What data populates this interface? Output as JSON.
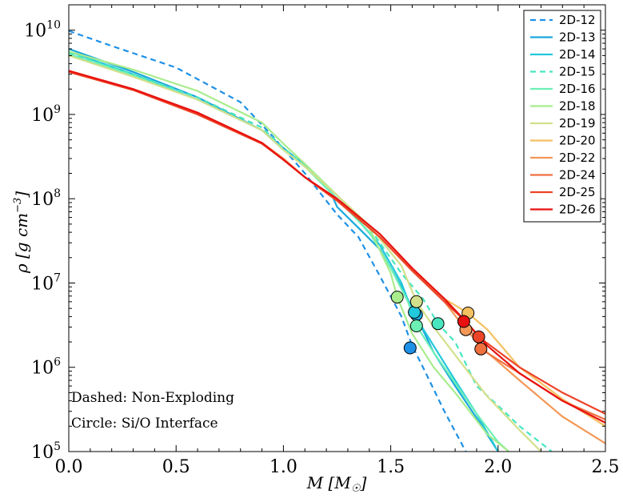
{
  "chart_data": {
    "type": "line",
    "xlabel": "M [M_sun]",
    "ylabel": "ρ [g cm⁻³]",
    "xlim": [
      0.0,
      2.5
    ],
    "ylim": [
      100000,
      20000000000
    ],
    "yscale": "log",
    "x_ticks": [
      0.0,
      0.5,
      1.0,
      1.5,
      2.0,
      2.5
    ],
    "x_tick_labels": [
      "0.0",
      "0.5",
      "1.0",
      "1.5",
      "2.0",
      "2.5"
    ],
    "y_ticks": [
      {
        "value": 100000,
        "base": "10",
        "exp": "5"
      },
      {
        "value": 1000000,
        "base": "10",
        "exp": "6"
      },
      {
        "value": 10000000,
        "base": "10",
        "exp": "7"
      },
      {
        "value": 100000000,
        "base": "10",
        "exp": "8"
      },
      {
        "value": 1000000000,
        "base": "10",
        "exp": "9"
      },
      {
        "value": 10000000000,
        "base": "10",
        "exp": "10"
      }
    ],
    "legend_position": "top-right",
    "annotations": [
      "Dashed: Non-Exploding",
      "Circle: Si/O Interface"
    ],
    "series": [
      {
        "name": "2D-12",
        "color": "#1e90e6",
        "dashed": true,
        "points": [
          [
            0,
            9800000000.0
          ],
          [
            0.2,
            6500000000.0
          ],
          [
            0.5,
            3600000000.0
          ],
          [
            0.8,
            1400000000.0
          ],
          [
            0.95,
            550000000.0
          ],
          [
            1.1,
            200000000.0
          ],
          [
            1.25,
            65000000.0
          ],
          [
            1.35,
            35000000.0
          ],
          [
            1.45,
            12000000.0
          ],
          [
            1.55,
            4000000.0
          ],
          [
            1.6,
            1800000.0
          ],
          [
            1.65,
            1000000.0
          ],
          [
            1.75,
            300000.0
          ],
          [
            1.85,
            100000.0
          ]
        ],
        "marker": [
          1.59,
          1700000.0
        ]
      },
      {
        "name": "2D-13",
        "color": "#1aa8dc",
        "dashed": false,
        "points": [
          [
            0,
            6000000000.0
          ],
          [
            0.3,
            3200000000.0
          ],
          [
            0.6,
            1600000000.0
          ],
          [
            0.9,
            650000000.0
          ],
          [
            1.0,
            400000000.0
          ],
          [
            1.1,
            250000000.0
          ],
          [
            1.22,
            120000000.0
          ],
          [
            1.25,
            80000000.0
          ],
          [
            1.35,
            45000000.0
          ],
          [
            1.45,
            25000000.0
          ],
          [
            1.55,
            9000000.0
          ],
          [
            1.62,
            4000000.0
          ],
          [
            1.7,
            1500000.0
          ],
          [
            1.8,
            600000.0
          ],
          [
            1.9,
            250000.0
          ],
          [
            2.0,
            100000.0
          ]
        ],
        "marker": [
          1.62,
          4200000.0
        ]
      },
      {
        "name": "2D-14",
        "color": "#22c8dc",
        "dashed": false,
        "points": [
          [
            0,
            5600000000.0
          ],
          [
            0.3,
            3000000000.0
          ],
          [
            0.6,
            1500000000.0
          ],
          [
            0.9,
            650000000.0
          ],
          [
            1.0,
            380000000.0
          ],
          [
            1.1,
            250000000.0
          ],
          [
            1.25,
            100000000.0
          ],
          [
            1.35,
            55000000.0
          ],
          [
            1.45,
            28000000.0
          ],
          [
            1.55,
            10000000.0
          ],
          [
            1.6,
            4600000.0
          ],
          [
            1.7,
            1800000.0
          ],
          [
            1.8,
            700000.0
          ],
          [
            1.9,
            280000.0
          ],
          [
            2.0,
            100000.0
          ]
        ],
        "marker": [
          1.61,
          4500000.0
        ]
      },
      {
        "name": "2D-15",
        "color": "#48e6c0",
        "dashed": true,
        "points": [
          [
            0,
            5400000000.0
          ],
          [
            0.3,
            3000000000.0
          ],
          [
            0.6,
            1600000000.0
          ],
          [
            0.9,
            700000000.0
          ],
          [
            1.0,
            400000000.0
          ],
          [
            1.1,
            250000000.0
          ],
          [
            1.25,
            110000000.0
          ],
          [
            1.4,
            45000000.0
          ],
          [
            1.55,
            13000000.0
          ],
          [
            1.65,
            6500000.0
          ],
          [
            1.72,
            3300000.0
          ],
          [
            1.8,
            2000000.0
          ],
          [
            1.9,
            600000.0
          ],
          [
            2.0,
            350000.0
          ],
          [
            2.1,
            200000.0
          ],
          [
            2.25,
            100000.0
          ]
        ],
        "marker": [
          1.72,
          3300000.0
        ]
      },
      {
        "name": "2D-16",
        "color": "#6cf0b4",
        "dashed": false,
        "points": [
          [
            0,
            5200000000.0
          ],
          [
            0.3,
            2900000000.0
          ],
          [
            0.6,
            1500000000.0
          ],
          [
            0.9,
            650000000.0
          ],
          [
            1.0,
            380000000.0
          ],
          [
            1.1,
            240000000.0
          ],
          [
            1.25,
            100000000.0
          ],
          [
            1.4,
            40000000.0
          ],
          [
            1.5,
            15000000.0
          ],
          [
            1.58,
            6000000.0
          ],
          [
            1.62,
            3100000.0
          ],
          [
            1.7,
            1500000.0
          ],
          [
            1.8,
            650000.0
          ],
          [
            1.9,
            280000.0
          ],
          [
            2.0,
            130000.0
          ],
          [
            2.05,
            100000.0
          ]
        ],
        "marker": [
          1.62,
          3100000.0
        ]
      },
      {
        "name": "2D-18",
        "color": "#a8ec8c",
        "dashed": false,
        "points": [
          [
            0,
            5600000000.0
          ],
          [
            0.3,
            3400000000.0
          ],
          [
            0.6,
            1900000000.0
          ],
          [
            0.9,
            800000000.0
          ],
          [
            1.0,
            450000000.0
          ],
          [
            1.1,
            260000000.0
          ],
          [
            1.25,
            110000000.0
          ],
          [
            1.4,
            45000000.0
          ],
          [
            1.5,
            13000000.0
          ],
          [
            1.53,
            6800000.0
          ],
          [
            1.6,
            2500000.0
          ],
          [
            1.7,
            1000000.0
          ],
          [
            1.8,
            500000.0
          ],
          [
            1.95,
            160000.0
          ],
          [
            2.05,
            100000.0
          ]
        ],
        "marker": [
          1.53,
          6800000.0
        ]
      },
      {
        "name": "2D-19",
        "color": "#d2e08c",
        "dashed": false,
        "points": [
          [
            0,
            5000000000.0
          ],
          [
            0.3,
            2800000000.0
          ],
          [
            0.6,
            1500000000.0
          ],
          [
            0.9,
            650000000.0
          ],
          [
            1.0,
            380000000.0
          ],
          [
            1.1,
            240000000.0
          ],
          [
            1.25,
            110000000.0
          ],
          [
            1.4,
            48000000.0
          ],
          [
            1.55,
            16000000.0
          ],
          [
            1.62,
            6000000.0
          ],
          [
            1.7,
            3000000.0
          ],
          [
            1.8,
            1400000.0
          ],
          [
            1.95,
            450000.0
          ],
          [
            2.1,
            180000.0
          ],
          [
            2.2,
            100000.0
          ]
        ],
        "marker": [
          1.62,
          6000000.0
        ]
      },
      {
        "name": "2D-20",
        "color": "#f4c060",
        "dashed": false,
        "points": [
          [
            0,
            3300000000.0
          ],
          [
            0.3,
            2000000000.0
          ],
          [
            0.6,
            1050000000.0
          ],
          [
            0.9,
            460000000.0
          ],
          [
            1.0,
            300000000.0
          ],
          [
            1.1,
            180000000.0
          ],
          [
            1.25,
            95000000.0
          ],
          [
            1.45,
            35000000.0
          ],
          [
            1.6,
            14000000.0
          ],
          [
            1.75,
            6500000.0
          ],
          [
            1.86,
            4400000.0
          ],
          [
            1.95,
            2800000.0
          ],
          [
            2.1,
            1000000.0
          ],
          [
            2.3,
            420000.0
          ],
          [
            2.5,
            200000.0
          ]
        ],
        "marker": [
          1.86,
          4400000.0
        ]
      },
      {
        "name": "2D-22",
        "color": "#f49858",
        "dashed": false,
        "points": [
          [
            0,
            3300000000.0
          ],
          [
            0.3,
            2000000000.0
          ],
          [
            0.6,
            1050000000.0
          ],
          [
            0.9,
            460000000.0
          ],
          [
            1.0,
            300000000.0
          ],
          [
            1.1,
            180000000.0
          ],
          [
            1.25,
            95000000.0
          ],
          [
            1.45,
            35000000.0
          ],
          [
            1.6,
            14000000.0
          ],
          [
            1.75,
            6000000.0
          ],
          [
            1.85,
            2800000.0
          ],
          [
            1.95,
            1500000.0
          ],
          [
            2.1,
            700000.0
          ],
          [
            2.3,
            260000.0
          ],
          [
            2.5,
            125000.0
          ]
        ],
        "marker": [
          1.85,
          2800000.0
        ]
      },
      {
        "name": "2D-24",
        "color": "#f07040",
        "dashed": false,
        "points": [
          [
            0,
            3200000000.0
          ],
          [
            0.3,
            1950000000.0
          ],
          [
            0.6,
            1000000000.0
          ],
          [
            0.9,
            450000000.0
          ],
          [
            1.0,
            290000000.0
          ],
          [
            1.1,
            180000000.0
          ],
          [
            1.25,
            95000000.0
          ],
          [
            1.45,
            35000000.0
          ],
          [
            1.6,
            14000000.0
          ],
          [
            1.75,
            6000000.0
          ],
          [
            1.85,
            3500000.0
          ],
          [
            1.92,
            1650000.0
          ],
          [
            2.1,
            850000.0
          ],
          [
            2.3,
            400000.0
          ],
          [
            2.5,
            240000.0
          ]
        ],
        "marker": [
          1.92,
          1650000.0
        ]
      },
      {
        "name": "2D-25",
        "color": "#ec4428",
        "dashed": false,
        "points": [
          [
            0,
            3200000000.0
          ],
          [
            0.3,
            1950000000.0
          ],
          [
            0.6,
            1000000000.0
          ],
          [
            0.9,
            450000000.0
          ],
          [
            1.0,
            290000000.0
          ],
          [
            1.1,
            180000000.0
          ],
          [
            1.25,
            95000000.0
          ],
          [
            1.45,
            35000000.0
          ],
          [
            1.6,
            14000000.0
          ],
          [
            1.75,
            6000000.0
          ],
          [
            1.85,
            3500000.0
          ],
          [
            1.91,
            2300000.0
          ],
          [
            2.1,
            1000000.0
          ],
          [
            2.3,
            500000.0
          ],
          [
            2.5,
            280000.0
          ]
        ],
        "marker": [
          1.91,
          2300000.0
        ]
      },
      {
        "name": "2D-26",
        "color": "#e81010",
        "dashed": false,
        "points": [
          [
            0,
            3300000000.0
          ],
          [
            0.3,
            2000000000.0
          ],
          [
            0.6,
            1050000000.0
          ],
          [
            0.9,
            460000000.0
          ],
          [
            1.0,
            290000000.0
          ],
          [
            1.1,
            180000000.0
          ],
          [
            1.25,
            100000000.0
          ],
          [
            1.45,
            38000000.0
          ],
          [
            1.6,
            15000000.0
          ],
          [
            1.75,
            6500000.0
          ],
          [
            1.85,
            3500000.0
          ],
          [
            1.95,
            1800000.0
          ],
          [
            2.1,
            850000.0
          ],
          [
            2.3,
            400000.0
          ],
          [
            2.5,
            220000.0
          ]
        ],
        "marker": [
          1.84,
          3500000.0
        ]
      }
    ]
  }
}
